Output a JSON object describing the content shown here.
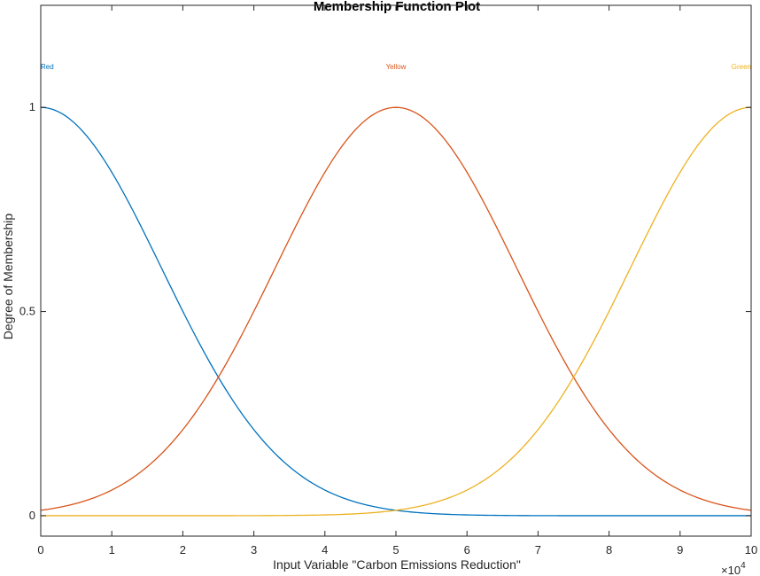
{
  "chart_data": {
    "type": "line",
    "title": "Membership Function Plot",
    "xlabel": "Input Variable \"Carbon Emissions Reduction\"",
    "ylabel": "Degree of Membership",
    "x_exponent_label": "×10",
    "x_exponent_power": "4",
    "xlim": [
      0,
      100000
    ],
    "ylim": [
      -0.05,
      1.25
    ],
    "x_ticks": [
      0,
      10000,
      20000,
      30000,
      40000,
      50000,
      60000,
      70000,
      80000,
      90000,
      100000
    ],
    "x_tick_labels": [
      "0",
      "1",
      "2",
      "3",
      "4",
      "5",
      "6",
      "7",
      "8",
      "9",
      "10"
    ],
    "y_ticks": [
      0,
      0.5,
      1
    ],
    "y_tick_labels": [
      "0",
      "0.5",
      "1"
    ],
    "grid": false,
    "series": [
      {
        "name": "Red",
        "shape": "gaussian",
        "center": 0,
        "sigma": 17000,
        "color": "#0072BD",
        "label_x": 0
      },
      {
        "name": "Yellow",
        "shape": "gaussian",
        "center": 50000,
        "sigma": 17000,
        "color": "#D95319",
        "label_x": 50000
      },
      {
        "name": "Green",
        "shape": "gaussian",
        "center": 100000,
        "sigma": 17000,
        "color": "#EDB120",
        "label_x": 100000
      }
    ],
    "mf_label_y": 1.1
  }
}
